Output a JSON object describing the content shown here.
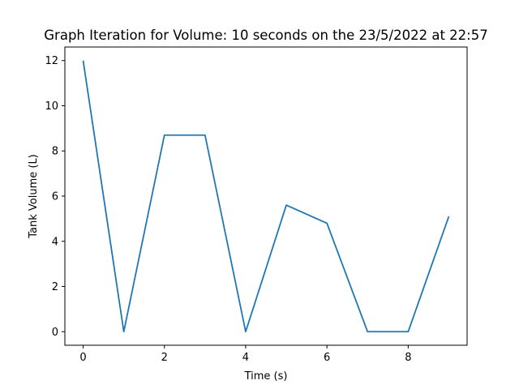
{
  "chart_data": {
    "type": "line",
    "title": "Graph Iteration for Volume: 10 seconds on the 23/5/2022 at 22:57",
    "xlabel": "Time (s)",
    "ylabel": "Tank Volume (L)",
    "x": [
      0,
      1,
      2,
      3,
      4,
      5,
      6,
      7,
      8,
      9
    ],
    "series": [
      {
        "values": [
          12,
          0,
          8.7,
          8.7,
          0,
          5.6,
          4.8,
          0,
          0,
          5.1
        ],
        "color": "#1f77b4"
      }
    ],
    "xlim": [
      -0.45,
      9.45
    ],
    "ylim": [
      -0.6,
      12.6
    ],
    "xticks": [
      0,
      2,
      4,
      6,
      8
    ],
    "yticks": [
      0,
      2,
      4,
      6,
      8,
      10,
      12
    ],
    "xtick_labels": [
      "0",
      "2",
      "4",
      "6",
      "8"
    ],
    "ytick_labels": [
      "0",
      "2",
      "4",
      "6",
      "8",
      "10",
      "12"
    ],
    "grid": false,
    "legend": false
  }
}
